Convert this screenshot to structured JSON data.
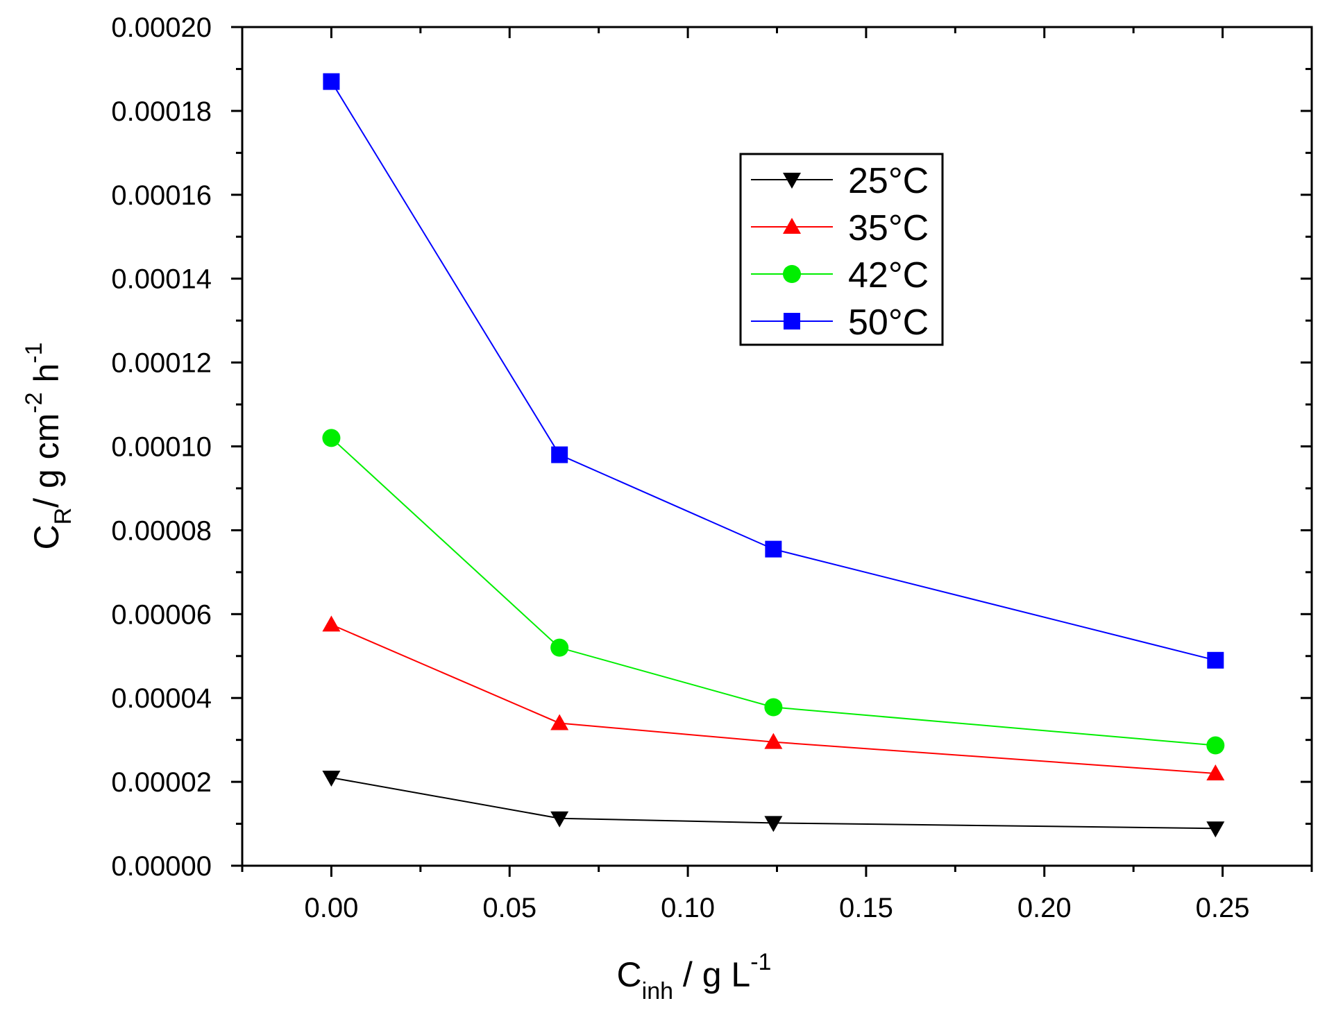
{
  "chart_data": {
    "type": "line",
    "title": "",
    "xlabel": {
      "main": "C",
      "sub": "inh",
      "rest": " / g L",
      "sup": "-1"
    },
    "ylabel": {
      "main": "C",
      "sub": "R",
      "rest": "/ g cm",
      "sup1": "-2",
      "rest2": " h",
      "sup2": "-1"
    },
    "xlim": [
      -0.025,
      0.275
    ],
    "ylim": [
      0,
      0.0002
    ],
    "x_major_ticks": [
      0.0,
      0.05,
      0.1,
      0.15,
      0.2,
      0.25
    ],
    "x_tick_labels": [
      "0.00",
      "0.05",
      "0.10",
      "0.15",
      "0.20",
      "0.25"
    ],
    "y_major_ticks": [
      0,
      2e-05,
      4e-05,
      6e-05,
      8e-05,
      0.0001,
      0.00012,
      0.00014,
      0.00016,
      0.00018,
      0.0002
    ],
    "y_tick_labels": [
      "0.00000",
      "0.00002",
      "0.00004",
      "0.00006",
      "0.00008",
      "0.00010",
      "0.00012",
      "0.00014",
      "0.00016",
      "0.00018",
      "0.00020"
    ],
    "legend_position": "upper-middle-right",
    "x": [
      0.0,
      0.064,
      0.124,
      0.248
    ],
    "series": [
      {
        "name": "25°C",
        "color": "#000000",
        "marker": "triangle-down",
        "values": [
          2.1e-05,
          1.13e-05,
          1.02e-05,
          8.9e-06
        ]
      },
      {
        "name": "35°C",
        "color": "#ff0000",
        "marker": "triangle-up",
        "values": [
          5.75e-05,
          3.4e-05,
          2.95e-05,
          2.2e-05
        ]
      },
      {
        "name": "42°C",
        "color": "#00ee00",
        "marker": "circle",
        "values": [
          0.000102,
          5.2e-05,
          3.78e-05,
          2.87e-05
        ]
      },
      {
        "name": "50°C",
        "color": "#0000ff",
        "marker": "square",
        "values": [
          0.000187,
          9.8e-05,
          7.55e-05,
          4.9e-05
        ]
      }
    ]
  }
}
